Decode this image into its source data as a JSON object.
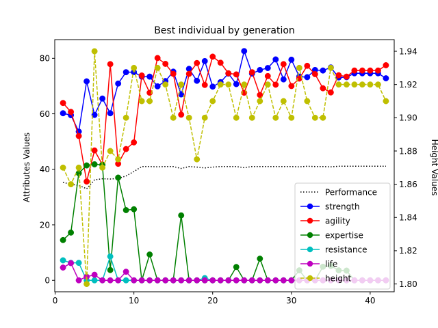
{
  "chart_data": {
    "type": "line",
    "title": "Best individual by generation",
    "xlabel": "",
    "ylabel_left": "Attributes Values",
    "ylabel_right": "Height Values",
    "xlim": [
      -0.05,
      43.05
    ],
    "ylim_left": [
      -4.13,
      86.73
    ],
    "ylim_right": [
      1.7953,
      1.947
    ],
    "x_ticks": [
      0,
      10,
      20,
      30,
      40
    ],
    "y_ticks_left": [
      0,
      20,
      40,
      60,
      80
    ],
    "y_ticks_right": [
      1.8,
      1.82,
      1.84,
      1.86,
      1.88,
      1.9,
      1.92,
      1.94
    ],
    "grid": false,
    "legend_position": "lower-right",
    "x": [
      1,
      2,
      3,
      4,
      5,
      6,
      7,
      8,
      9,
      10,
      11,
      12,
      13,
      14,
      15,
      16,
      17,
      18,
      19,
      20,
      21,
      22,
      23,
      24,
      25,
      26,
      27,
      28,
      29,
      30,
      31,
      32,
      33,
      34,
      35,
      36,
      37,
      38,
      39,
      40,
      41,
      42
    ],
    "series": [
      {
        "name": "Performance",
        "axis": "left",
        "color": "#000000",
        "style": "dotted",
        "marker": false,
        "values": [
          35.3,
          34.6,
          34.2,
          33.0,
          36.2,
          36.6,
          36.5,
          36.7,
          37.6,
          39.2,
          41.0,
          41.0,
          40.9,
          41.0,
          41.0,
          40.3,
          41.0,
          40.8,
          40.5,
          40.8,
          41.0,
          41.0,
          41.0,
          40.6,
          41.0,
          41.0,
          41.0,
          41.0,
          41.0,
          41.0,
          40.9,
          41.1,
          41.0,
          41.0,
          40.9,
          41.1,
          41.1,
          41.1,
          41.1,
          41.1,
          41.1,
          41.1
        ]
      },
      {
        "name": "strength",
        "axis": "left",
        "color": "#0000ff",
        "style": "solid",
        "marker": true,
        "values": [
          60.2,
          59.5,
          53.6,
          71.7,
          59.6,
          65.5,
          60.2,
          70.9,
          75.0,
          75.0,
          73.4,
          73.4,
          69.9,
          71.8,
          75.2,
          67.0,
          76.2,
          71.9,
          79.0,
          69.8,
          71.4,
          74.5,
          70.7,
          82.6,
          74.5,
          75.8,
          76.5,
          79.6,
          72.4,
          79.5,
          73.4,
          73.2,
          75.8,
          75.6,
          76.7,
          73.1,
          73.2,
          74.6,
          74.6,
          74.6,
          74.6,
          72.8
        ]
      },
      {
        "name": "agility",
        "axis": "left",
        "color": "#ff0000",
        "style": "solid",
        "marker": true,
        "values": [
          63.9,
          60.7,
          52.0,
          35.6,
          46.8,
          41.7,
          77.9,
          42.0,
          47.3,
          49.7,
          73.8,
          67.6,
          80.1,
          78.0,
          74.4,
          59.7,
          74.4,
          78.3,
          70.4,
          80.6,
          78.4,
          74.6,
          74.2,
          67.6,
          75.0,
          66.8,
          73.6,
          70.5,
          77.9,
          70.0,
          72.7,
          77.3,
          74.3,
          69.2,
          67.7,
          73.9,
          73.4,
          75.6,
          75.6,
          75.6,
          75.6,
          77.5
        ]
      },
      {
        "name": "expertise",
        "axis": "left",
        "color": "#008000",
        "style": "solid",
        "marker": true,
        "values": [
          14.5,
          17.2,
          38.6,
          41.4,
          41.8,
          41.6,
          3.7,
          37.0,
          25.3,
          25.6,
          0.0,
          9.3,
          0.0,
          0.0,
          0.0,
          23.4,
          0.0,
          0.0,
          0.0,
          0.0,
          0.0,
          0.0,
          4.8,
          0.0,
          0.0,
          7.8,
          0.0,
          0.0,
          0.0,
          0.0,
          3.6,
          0.0,
          0.0,
          4.9,
          5.2,
          3.6,
          3.5,
          0.0,
          0.0,
          0.0,
          0.0,
          0.0
        ]
      },
      {
        "name": "resistance",
        "axis": "left",
        "color": "#00bfbf",
        "style": "solid",
        "marker": true,
        "values": [
          7.2,
          6.3,
          6.3,
          0.0,
          0.0,
          0.0,
          8.6,
          0.0,
          0.0,
          0.0,
          0.0,
          0.0,
          0.0,
          0.0,
          0.0,
          0.0,
          0.0,
          0.0,
          0.8,
          0.0,
          0.0,
          0.0,
          0.0,
          0.0,
          0.0,
          0.0,
          0.0,
          0.0,
          0.0,
          0.0,
          0.0,
          0.0,
          0.0,
          0.0,
          0.0,
          0.0,
          0.0,
          0.0,
          0.0,
          0.0,
          0.0,
          0.0
        ]
      },
      {
        "name": "life",
        "axis": "left",
        "color": "#bf00bf",
        "style": "solid",
        "marker": true,
        "values": [
          4.6,
          6.2,
          0.0,
          1.3,
          2.0,
          0.0,
          0.0,
          0.0,
          3.1,
          0.0,
          0.0,
          0.0,
          0.0,
          0.0,
          0.0,
          0.0,
          0.0,
          0.0,
          0.0,
          0.0,
          0.0,
          0.0,
          0.0,
          0.0,
          0.0,
          0.0,
          0.0,
          0.0,
          0.0,
          0.0,
          0.0,
          0.0,
          0.0,
          0.0,
          0.0,
          0.0,
          0.0,
          0.0,
          0.0,
          0.0,
          0.0,
          0.0
        ]
      },
      {
        "name": "height",
        "axis": "right",
        "color": "#bfbf00",
        "style": "dashed",
        "marker": true,
        "values": [
          1.87,
          1.86,
          1.87,
          1.8,
          1.94,
          1.87,
          1.88,
          1.875,
          1.9,
          1.93,
          1.91,
          1.91,
          1.93,
          1.92,
          1.9,
          1.92,
          1.9,
          1.875,
          1.9,
          1.91,
          1.92,
          1.92,
          1.9,
          1.92,
          1.9,
          1.91,
          1.92,
          1.9,
          1.91,
          1.9,
          1.93,
          1.91,
          1.9,
          1.9,
          1.93,
          1.92,
          1.92,
          1.92,
          1.92,
          1.92,
          1.92,
          1.91
        ]
      }
    ]
  }
}
